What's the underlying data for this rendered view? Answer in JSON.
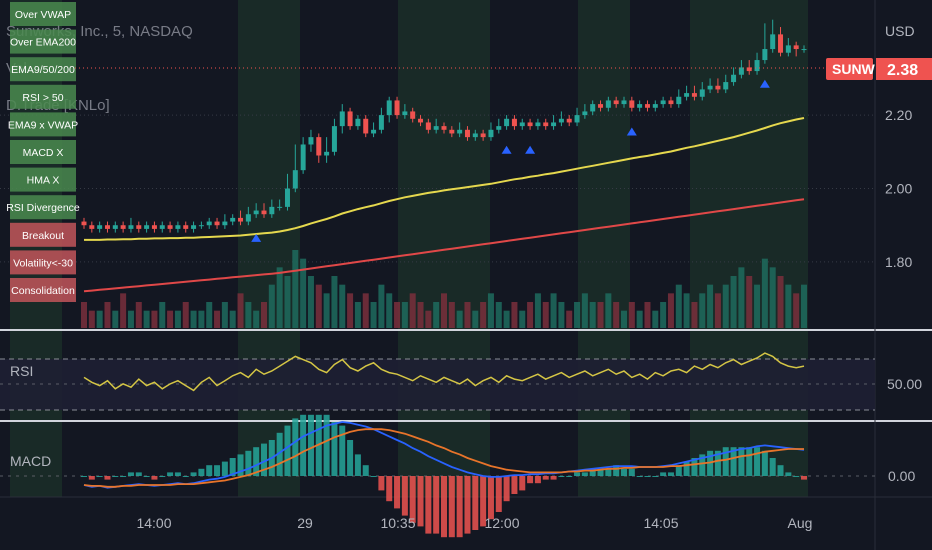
{
  "header": {
    "symbol_line": "Sunworks, Inc., 5, NASDAQ",
    "volume_label": "Vol",
    "indicator_label": "D.Trade [KNLo]",
    "currency": "USD"
  },
  "price_tag": {
    "symbol": "SUNW",
    "value": "2.38",
    "color": "#ef5350"
  },
  "signal_tags": [
    {
      "label": "Over VWAP",
      "color": "#4a8a4f"
    },
    {
      "label": "Over EMA200",
      "color": "#4a8a4f"
    },
    {
      "label": "EMA9/50/200",
      "color": "#4a8a4f"
    },
    {
      "label": "RSI > 50",
      "color": "#4a8a4f"
    },
    {
      "label": "EMA9 x VWAP",
      "color": "#4a8a4f"
    },
    {
      "label": "MACD X",
      "color": "#4a8a4f"
    },
    {
      "label": "HMA X",
      "color": "#4a8a4f"
    },
    {
      "label": "RSI Divergence",
      "color": "#4a8a4f"
    },
    {
      "label": "Breakout",
      "color": "#c2555b"
    },
    {
      "label": "Volatility<-30",
      "color": "#c2555b"
    },
    {
      "label": "Consolidation",
      "color": "#c2555b"
    }
  ],
  "rsi_label": "RSI",
  "macd_label": "MACD",
  "chart_data": {
    "type": "candlestick",
    "ylim": [
      1.62,
      2.5
    ],
    "y_ticks": [
      "2.20",
      "2.00",
      "1.80"
    ],
    "rsi_tick": "50.00",
    "macd_tick": "0.00",
    "x_ticks": [
      "14:00",
      "29",
      "10:35",
      "12:00",
      "14:05",
      "Aug"
    ],
    "colors": {
      "up": "#26a69a",
      "down": "#ef5350",
      "ema9": "#4caf50",
      "ema50": "#e5d84e",
      "ema200": "#e04848",
      "vwap": "#e6e6e6",
      "rsi": "#d4c545",
      "macd": "#2962ff",
      "signal": "#e8742a"
    },
    "candles": [
      [
        1.91,
        1.9,
        1.92,
        1.89
      ],
      [
        1.9,
        1.89,
        1.91,
        1.88
      ],
      [
        1.89,
        1.9,
        1.91,
        1.88
      ],
      [
        1.9,
        1.89,
        1.91,
        1.88
      ],
      [
        1.89,
        1.9,
        1.91,
        1.88
      ],
      [
        1.9,
        1.89,
        1.91,
        1.88
      ],
      [
        1.89,
        1.9,
        1.92,
        1.88
      ],
      [
        1.9,
        1.89,
        1.91,
        1.88
      ],
      [
        1.89,
        1.9,
        1.91,
        1.88
      ],
      [
        1.9,
        1.89,
        1.91,
        1.88
      ],
      [
        1.89,
        1.9,
        1.91,
        1.88
      ],
      [
        1.9,
        1.89,
        1.91,
        1.88
      ],
      [
        1.89,
        1.9,
        1.91,
        1.88
      ],
      [
        1.9,
        1.89,
        1.91,
        1.88
      ],
      [
        1.89,
        1.9,
        1.91,
        1.88
      ],
      [
        1.9,
        1.9,
        1.91,
        1.89
      ],
      [
        1.9,
        1.91,
        1.92,
        1.89
      ],
      [
        1.91,
        1.9,
        1.92,
        1.89
      ],
      [
        1.9,
        1.91,
        1.93,
        1.89
      ],
      [
        1.91,
        1.92,
        1.93,
        1.9
      ],
      [
        1.92,
        1.91,
        1.94,
        1.9
      ],
      [
        1.91,
        1.93,
        1.95,
        1.9
      ],
      [
        1.93,
        1.94,
        1.96,
        1.92
      ],
      [
        1.94,
        1.93,
        1.96,
        1.92
      ],
      [
        1.93,
        1.95,
        1.97,
        1.92
      ],
      [
        1.95,
        1.95,
        1.97,
        1.94
      ],
      [
        1.95,
        2.0,
        2.04,
        1.94
      ],
      [
        2.0,
        2.05,
        2.12,
        1.99
      ],
      [
        2.05,
        2.12,
        2.14,
        2.04
      ],
      [
        2.12,
        2.14,
        2.16,
        2.1
      ],
      [
        2.14,
        2.09,
        2.15,
        2.07
      ],
      [
        2.09,
        2.1,
        2.14,
        2.07
      ],
      [
        2.1,
        2.17,
        2.19,
        2.09
      ],
      [
        2.17,
        2.21,
        2.23,
        2.15
      ],
      [
        2.21,
        2.17,
        2.22,
        2.16
      ],
      [
        2.17,
        2.19,
        2.2,
        2.16
      ],
      [
        2.19,
        2.15,
        2.2,
        2.14
      ],
      [
        2.15,
        2.16,
        2.18,
        2.14
      ],
      [
        2.16,
        2.2,
        2.22,
        2.15
      ],
      [
        2.2,
        2.24,
        2.25,
        2.18
      ],
      [
        2.24,
        2.2,
        2.25,
        2.19
      ],
      [
        2.2,
        2.21,
        2.23,
        2.19
      ],
      [
        2.21,
        2.19,
        2.22,
        2.18
      ],
      [
        2.19,
        2.18,
        2.2,
        2.17
      ],
      [
        2.18,
        2.16,
        2.19,
        2.15
      ],
      [
        2.16,
        2.17,
        2.19,
        2.15
      ],
      [
        2.17,
        2.16,
        2.18,
        2.15
      ],
      [
        2.16,
        2.15,
        2.17,
        2.14
      ],
      [
        2.15,
        2.16,
        2.18,
        2.14
      ],
      [
        2.16,
        2.14,
        2.17,
        2.13
      ],
      [
        2.14,
        2.15,
        2.16,
        2.13
      ],
      [
        2.15,
        2.14,
        2.16,
        2.13
      ],
      [
        2.14,
        2.16,
        2.18,
        2.13
      ],
      [
        2.16,
        2.17,
        2.19,
        2.15
      ],
      [
        2.17,
        2.19,
        2.2,
        2.16
      ],
      [
        2.19,
        2.17,
        2.2,
        2.16
      ],
      [
        2.17,
        2.18,
        2.19,
        2.16
      ],
      [
        2.18,
        2.17,
        2.19,
        2.16
      ],
      [
        2.17,
        2.18,
        2.19,
        2.16
      ],
      [
        2.18,
        2.17,
        2.19,
        2.16
      ],
      [
        2.17,
        2.18,
        2.2,
        2.16
      ],
      [
        2.18,
        2.19,
        2.21,
        2.17
      ],
      [
        2.19,
        2.18,
        2.2,
        2.17
      ],
      [
        2.18,
        2.2,
        2.22,
        2.17
      ],
      [
        2.2,
        2.21,
        2.23,
        2.19
      ],
      [
        2.21,
        2.23,
        2.24,
        2.2
      ],
      [
        2.23,
        2.22,
        2.24,
        2.21
      ],
      [
        2.22,
        2.24,
        2.25,
        2.21
      ],
      [
        2.24,
        2.23,
        2.25,
        2.22
      ],
      [
        2.23,
        2.24,
        2.25,
        2.22
      ],
      [
        2.24,
        2.22,
        2.25,
        2.21
      ],
      [
        2.22,
        2.23,
        2.24,
        2.21
      ],
      [
        2.23,
        2.22,
        2.24,
        2.21
      ],
      [
        2.22,
        2.23,
        2.24,
        2.21
      ],
      [
        2.23,
        2.24,
        2.25,
        2.22
      ],
      [
        2.24,
        2.23,
        2.25,
        2.22
      ],
      [
        2.23,
        2.25,
        2.27,
        2.22
      ],
      [
        2.25,
        2.26,
        2.28,
        2.24
      ],
      [
        2.26,
        2.25,
        2.28,
        2.24
      ],
      [
        2.25,
        2.27,
        2.29,
        2.24
      ],
      [
        2.27,
        2.28,
        2.3,
        2.26
      ],
      [
        2.28,
        2.27,
        2.3,
        2.26
      ],
      [
        2.27,
        2.29,
        2.31,
        2.26
      ],
      [
        2.29,
        2.31,
        2.33,
        2.28
      ],
      [
        2.31,
        2.33,
        2.35,
        2.3
      ],
      [
        2.33,
        2.32,
        2.35,
        2.31
      ],
      [
        2.32,
        2.35,
        2.37,
        2.31
      ],
      [
        2.35,
        2.38,
        2.45,
        2.34
      ],
      [
        2.38,
        2.42,
        2.46,
        2.37
      ],
      [
        2.42,
        2.37,
        2.44,
        2.36
      ],
      [
        2.37,
        2.39,
        2.41,
        2.36
      ],
      [
        2.39,
        2.38,
        2.4,
        2.36
      ],
      [
        2.38,
        2.38,
        2.39,
        2.37
      ]
    ],
    "volume": [
      3,
      2,
      2,
      3,
      2,
      4,
      2,
      3,
      2,
      2,
      3,
      2,
      2,
      3,
      2,
      2,
      3,
      2,
      3,
      2,
      4,
      3,
      2,
      3,
      5,
      7,
      6,
      9,
      8,
      6,
      5,
      4,
      6,
      5,
      4,
      3,
      4,
      3,
      5,
      4,
      3,
      3,
      4,
      3,
      2,
      3,
      4,
      3,
      2,
      3,
      2,
      3,
      4,
      3,
      2,
      3,
      2,
      3,
      4,
      3,
      4,
      3,
      2,
      3,
      4,
      3,
      3,
      4,
      3,
      2,
      3,
      2,
      3,
      2,
      3,
      4,
      5,
      4,
      3,
      4,
      5,
      4,
      5,
      6,
      7,
      6,
      5,
      8,
      7,
      6,
      5,
      4,
      5
    ],
    "rsi": [
      55,
      52,
      50,
      53,
      48,
      51,
      49,
      54,
      50,
      52,
      48,
      51,
      53,
      50,
      47,
      52,
      55,
      50,
      53,
      56,
      58,
      55,
      60,
      57,
      59,
      62,
      65,
      68,
      66,
      64,
      60,
      58,
      63,
      66,
      61,
      59,
      62,
      64,
      60,
      58,
      57,
      55,
      53,
      56,
      54,
      52,
      55,
      53,
      51,
      54,
      50,
      53,
      55,
      52,
      56,
      54,
      53,
      55,
      57,
      54,
      56,
      58,
      55,
      57,
      59,
      56,
      58,
      60,
      57,
      59,
      55,
      57,
      54,
      58,
      56,
      59,
      60,
      58,
      62,
      60,
      63,
      61,
      64,
      66,
      63,
      65,
      67,
      70,
      68,
      64,
      62,
      61,
      62
    ],
    "macd": [
      -0.01,
      -0.012,
      -0.011,
      -0.013,
      -0.012,
      -0.011,
      -0.01,
      -0.009,
      -0.01,
      -0.011,
      -0.01,
      -0.009,
      -0.008,
      -0.009,
      -0.008,
      -0.006,
      -0.004,
      -0.003,
      -0.001,
      0.002,
      0.005,
      0.008,
      0.012,
      0.016,
      0.02,
      0.026,
      0.032,
      0.038,
      0.044,
      0.048,
      0.052,
      0.056,
      0.058,
      0.06,
      0.059,
      0.057,
      0.055,
      0.052,
      0.048,
      0.044,
      0.04,
      0.036,
      0.031,
      0.027,
      0.022,
      0.018,
      0.014,
      0.01,
      0.007,
      0.004,
      0.002,
      0.0,
      -0.001,
      -0.001,
      0.0,
      0.001,
      0.001,
      0.002,
      0.002,
      0.003,
      0.003,
      0.004,
      0.005,
      0.006,
      0.007,
      0.008,
      0.009,
      0.01,
      0.011,
      0.011,
      0.011,
      0.01,
      0.01,
      0.01,
      0.011,
      0.012,
      0.014,
      0.016,
      0.018,
      0.02,
      0.022,
      0.024,
      0.026,
      0.028,
      0.03,
      0.031,
      0.033,
      0.034,
      0.033,
      0.032,
      0.031,
      0.03,
      0.029
    ],
    "signal": [
      -0.01,
      -0.011,
      -0.011,
      -0.012,
      -0.012,
      -0.011,
      -0.011,
      -0.01,
      -0.01,
      -0.01,
      -0.01,
      -0.01,
      -0.009,
      -0.009,
      -0.009,
      -0.008,
      -0.007,
      -0.006,
      -0.005,
      -0.003,
      -0.001,
      0.001,
      0.004,
      0.007,
      0.01,
      0.014,
      0.018,
      0.022,
      0.027,
      0.031,
      0.035,
      0.039,
      0.043,
      0.046,
      0.049,
      0.051,
      0.052,
      0.052,
      0.052,
      0.051,
      0.049,
      0.047,
      0.044,
      0.041,
      0.038,
      0.034,
      0.031,
      0.027,
      0.024,
      0.02,
      0.017,
      0.014,
      0.011,
      0.009,
      0.007,
      0.006,
      0.005,
      0.004,
      0.004,
      0.004,
      0.004,
      0.004,
      0.005,
      0.005,
      0.006,
      0.006,
      0.007,
      0.008,
      0.008,
      0.009,
      0.009,
      0.01,
      0.01,
      0.01,
      0.01,
      0.011,
      0.011,
      0.012,
      0.013,
      0.014,
      0.015,
      0.017,
      0.018,
      0.02,
      0.022,
      0.023,
      0.025,
      0.027,
      0.028,
      0.029,
      0.03,
      0.03,
      0.03
    ],
    "ema50": [
      1.86,
      1.86,
      1.86,
      1.861,
      1.861,
      1.862,
      1.862,
      1.863,
      1.863,
      1.864,
      1.864,
      1.865,
      1.865,
      1.866,
      1.866,
      1.867,
      1.868,
      1.869,
      1.87,
      1.871,
      1.872,
      1.874,
      1.876,
      1.878,
      1.88,
      1.883,
      1.887,
      1.892,
      1.898,
      1.905,
      1.911,
      1.917,
      1.924,
      1.932,
      1.938,
      1.944,
      1.949,
      1.954,
      1.96,
      1.966,
      1.971,
      1.976,
      1.98,
      1.984,
      1.988,
      1.991,
      1.995,
      1.998,
      2.001,
      2.004,
      2.007,
      2.01,
      2.013,
      2.017,
      2.021,
      2.025,
      2.028,
      2.032,
      2.035,
      2.039,
      2.042,
      2.046,
      2.05,
      2.054,
      2.058,
      2.062,
      2.066,
      2.07,
      2.074,
      2.078,
      2.082,
      2.086,
      2.089,
      2.093,
      2.097,
      2.101,
      2.106,
      2.111,
      2.115,
      2.12,
      2.125,
      2.13,
      2.135,
      2.14,
      2.146,
      2.152,
      2.158,
      2.165,
      2.172,
      2.178,
      2.183,
      2.188,
      2.192
    ],
    "ema200": [
      1.72,
      1.722,
      1.724,
      1.726,
      1.728,
      1.73,
      1.732,
      1.734,
      1.736,
      1.738,
      1.74,
      1.742,
      1.744,
      1.746,
      1.748,
      1.75,
      1.752,
      1.754,
      1.756,
      1.758,
      1.76,
      1.762,
      1.764,
      1.766,
      1.768,
      1.77,
      1.773,
      1.776,
      1.779,
      1.782,
      1.785,
      1.788,
      1.791,
      1.794,
      1.797,
      1.8,
      1.803,
      1.806,
      1.809,
      1.812,
      1.815,
      1.818,
      1.821,
      1.824,
      1.827,
      1.83,
      1.833,
      1.836,
      1.839,
      1.842,
      1.845,
      1.848,
      1.851,
      1.854,
      1.857,
      1.86,
      1.863,
      1.866,
      1.869,
      1.872,
      1.875,
      1.878,
      1.881,
      1.884,
      1.887,
      1.89,
      1.893,
      1.896,
      1.899,
      1.902,
      1.905,
      1.908,
      1.911,
      1.914,
      1.917,
      1.92,
      1.923,
      1.926,
      1.929,
      1.932,
      1.935,
      1.938,
      1.941,
      1.944,
      1.947,
      1.95,
      1.953,
      1.956,
      1.959,
      1.962,
      1.965,
      1.968,
      1.971
    ]
  }
}
